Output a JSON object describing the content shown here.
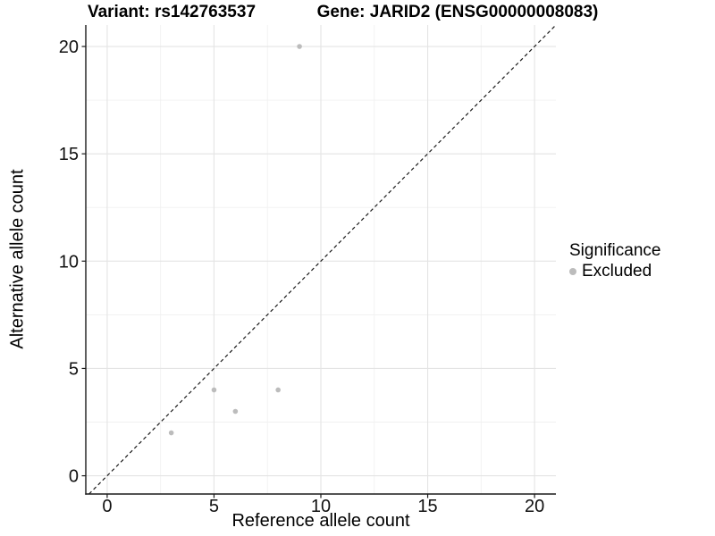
{
  "chart_data": {
    "type": "scatter",
    "title_variant": "Variant: rs142763537",
    "title_gene": "Gene: JARID2 (ENSG00000008083)",
    "xlabel": "Reference allele count",
    "ylabel": "Alternative allele count",
    "xlim": [
      -1,
      21
    ],
    "ylim": [
      -0.85,
      21
    ],
    "xticks": [
      0,
      5,
      10,
      15,
      20
    ],
    "yticks": [
      0,
      5,
      10,
      15,
      20
    ],
    "xminor": [
      2.5,
      7.5,
      12.5,
      17.5
    ],
    "yminor": [
      2.5,
      7.5,
      12.5,
      17.5
    ],
    "grid": true,
    "identity_line": {
      "style": "dashed",
      "slope": 1,
      "intercept": 0
    },
    "series": [
      {
        "name": "Excluded",
        "color": "#bcbcbc",
        "points": [
          {
            "x": 3,
            "y": 2
          },
          {
            "x": 5,
            "y": 4
          },
          {
            "x": 6,
            "y": 3
          },
          {
            "x": 8,
            "y": 4
          },
          {
            "x": 9,
            "y": 20
          }
        ]
      }
    ],
    "legend": {
      "title": "Significance",
      "position": "right",
      "items": [
        {
          "label": "Excluded",
          "color": "#bcbcbc"
        }
      ]
    },
    "colors": {
      "background": "#ffffff",
      "grid_major": "#e4e4e4",
      "grid_minor": "#f1f1f1",
      "axis": "#1a1a1a",
      "text": "#111111"
    }
  }
}
